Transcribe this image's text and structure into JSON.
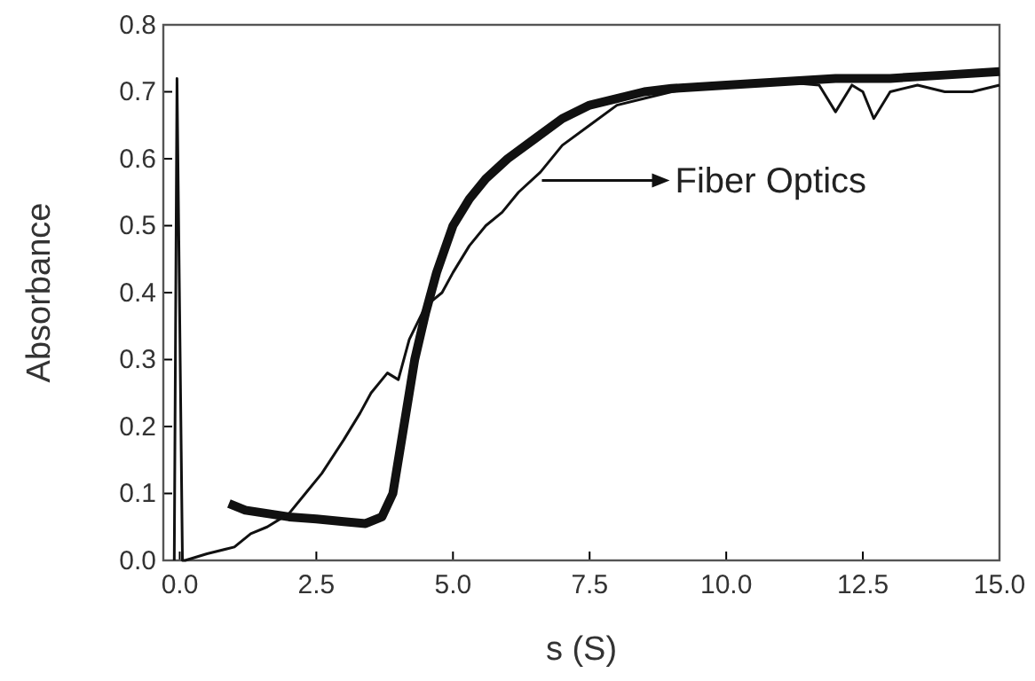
{
  "chart_data": {
    "type": "line",
    "xlabel": "s (S)",
    "ylabel": "Absorbance",
    "xlim": [
      -0.3,
      15
    ],
    "ylim": [
      0,
      0.8
    ],
    "xticks": [
      {
        "value": 0,
        "label": "0.0"
      },
      {
        "value": 2.5,
        "label": "2.5"
      },
      {
        "value": 5,
        "label": "5.0"
      },
      {
        "value": 7.5,
        "label": "7.5"
      },
      {
        "value": 10,
        "label": "10.0"
      },
      {
        "value": 12.5,
        "label": "12.5"
      },
      {
        "value": 15,
        "label": "15.0"
      }
    ],
    "yticks": [
      {
        "value": 0,
        "label": "0.0"
      },
      {
        "value": 0.1,
        "label": "0.1"
      },
      {
        "value": 0.2,
        "label": "0.2"
      },
      {
        "value": 0.3,
        "label": "0.3"
      },
      {
        "value": 0.4,
        "label": "0.4"
      },
      {
        "value": 0.5,
        "label": "0.5"
      },
      {
        "value": 0.6,
        "label": "0.6"
      },
      {
        "value": 0.7,
        "label": "0.7"
      },
      {
        "value": 0.8,
        "label": "0.8"
      }
    ],
    "series": [
      {
        "name": "Fiber Optics",
        "color": "#111111",
        "x": [
          0.9,
          1.2,
          1.6,
          2.0,
          2.5,
          3.0,
          3.4,
          3.7,
          3.9,
          4.1,
          4.3,
          4.5,
          4.7,
          5.0,
          5.3,
          5.6,
          6.0,
          6.5,
          7.0,
          7.5,
          8.0,
          8.5,
          9.0,
          10.0,
          11.0,
          12.0,
          13.0,
          14.0,
          15.0
        ],
        "values": [
          0.085,
          0.075,
          0.07,
          0.065,
          0.062,
          0.058,
          0.055,
          0.065,
          0.1,
          0.2,
          0.3,
          0.37,
          0.43,
          0.5,
          0.54,
          0.57,
          0.6,
          0.63,
          0.66,
          0.68,
          0.69,
          0.7,
          0.705,
          0.71,
          0.715,
          0.72,
          0.72,
          0.725,
          0.73
        ]
      },
      {
        "color": "#111111",
        "x": [
          -0.1,
          -0.05,
          0.05,
          0.1,
          0.5,
          1.0,
          1.3,
          1.6,
          2.0,
          2.3,
          2.6,
          3.0,
          3.3,
          3.5,
          3.8,
          4.0,
          4.2,
          4.5,
          4.8,
          5.0,
          5.3,
          5.6,
          5.9,
          6.2,
          6.6,
          7.0,
          7.5,
          8.0,
          8.5,
          9.0,
          10.0,
          11.0,
          11.7,
          12.0,
          12.3,
          12.5,
          12.7,
          13.0,
          13.5,
          14.0,
          14.5,
          15.0
        ],
        "values": [
          0.0,
          0.72,
          0.0,
          0.0,
          0.01,
          0.02,
          0.04,
          0.05,
          0.07,
          0.1,
          0.13,
          0.18,
          0.22,
          0.25,
          0.28,
          0.27,
          0.33,
          0.38,
          0.4,
          0.43,
          0.47,
          0.5,
          0.52,
          0.55,
          0.58,
          0.62,
          0.65,
          0.68,
          0.69,
          0.7,
          0.71,
          0.715,
          0.71,
          0.67,
          0.71,
          0.7,
          0.66,
          0.7,
          0.71,
          0.7,
          0.7,
          0.71
        ]
      }
    ]
  }
}
